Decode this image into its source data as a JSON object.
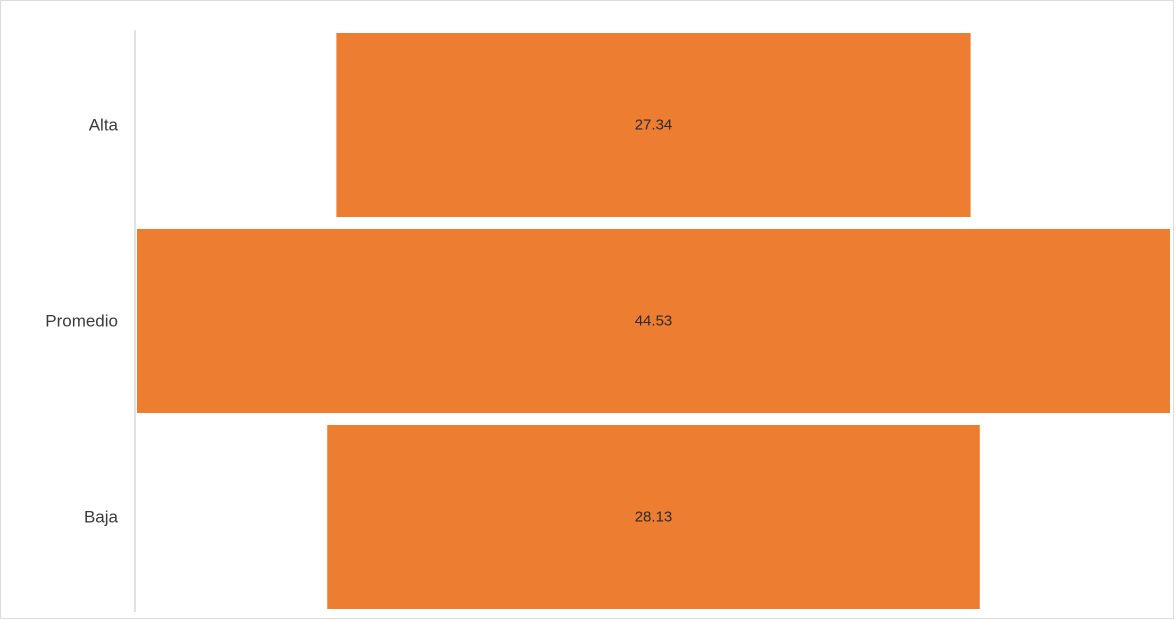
{
  "chart_data": {
    "type": "bar",
    "subtype": "funnel",
    "orientation": "horizontal",
    "categories": [
      "Alta",
      "Promedio",
      "Baja"
    ],
    "values": [
      27.34,
      44.53,
      28.13
    ],
    "data_labels": [
      "27.34",
      "44.53",
      "28.13"
    ],
    "title": "",
    "xlabel": "",
    "ylabel": "",
    "bar_color": "#ED7D31",
    "grid": false,
    "legend": "none"
  }
}
